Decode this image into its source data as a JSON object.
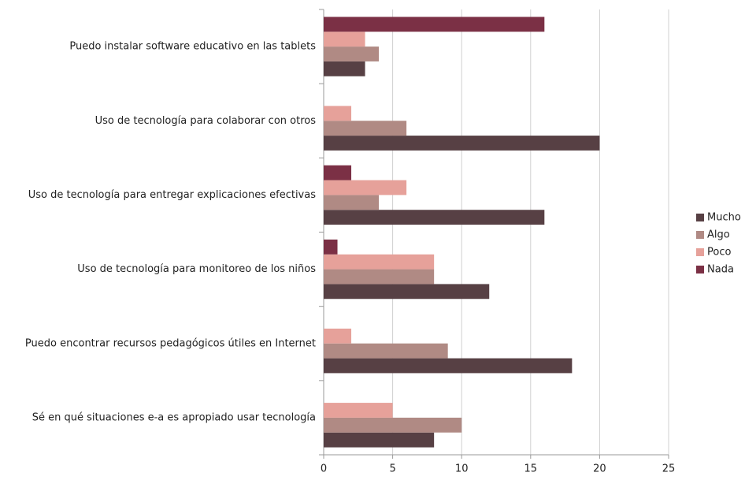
{
  "chart_data": {
    "type": "barh",
    "categories": [
      "Puedo instalar software educativo en las tablets",
      "Uso de tecnología para colaborar con otros",
      "Uso de tecnología para entregar explicaciones efectivas",
      "Uso de tecnología para monitoreo de los niños",
      "Puedo encontrar recursos pedagógicos útiles en Internet",
      "Sé en qué situaciones e-a es apropiado usar tecnología"
    ],
    "series": [
      {
        "name": "Mucho",
        "color": "#574044",
        "values": [
          3,
          20,
          16,
          12,
          18,
          8
        ]
      },
      {
        "name": "Algo",
        "color": "#b08a84",
        "values": [
          4,
          6,
          4,
          8,
          9,
          10
        ]
      },
      {
        "name": "Poco",
        "color": "#e6a19a",
        "values": [
          3,
          2,
          6,
          8,
          2,
          5
        ]
      },
      {
        "name": "Nada",
        "color": "#7b3045",
        "values": [
          16,
          0,
          2,
          1,
          0,
          0
        ]
      }
    ],
    "xlim": [
      0,
      25
    ],
    "xticks": [
      0,
      5,
      10,
      15,
      20,
      25
    ],
    "grid": true,
    "legend": "right"
  }
}
